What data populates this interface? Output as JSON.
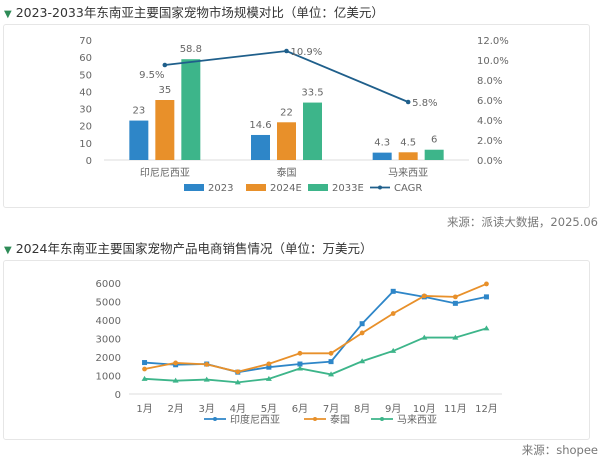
{
  "chart_data": [
    {
      "type": "bar",
      "title": "2023-2033年东南亚主要国家宠物市场规模对比（单位：亿美元）",
      "source": "来源：派读大数据，2025.06",
      "categories": [
        "印尼尼西亚",
        "泰国",
        "马来西亚"
      ],
      "series": [
        {
          "name": "2023",
          "color": "#2e86c8",
          "values": [
            23,
            14.6,
            4.3
          ],
          "labels": [
            "23",
            "14.6",
            "4.3"
          ]
        },
        {
          "name": "2024E",
          "color": "#e8902a",
          "values": [
            35,
            22,
            4.5
          ],
          "labels": [
            "35",
            "22",
            "4.5"
          ]
        },
        {
          "name": "2033E",
          "color": "#3db58a",
          "values": [
            58.8,
            33.5,
            6
          ],
          "labels": [
            "58.8",
            "33.5",
            "6"
          ]
        }
      ],
      "line": {
        "name": "CAGR",
        "color": "#1f5f8b",
        "values": [
          9.5,
          10.9,
          5.8
        ],
        "labels": [
          "9.5%",
          "10.9%",
          "5.8%"
        ]
      },
      "ylim": [
        0,
        70
      ],
      "yticks": [
        "0",
        "10",
        "20",
        "30",
        "40",
        "50",
        "60",
        "70"
      ],
      "y2lim": [
        0,
        12
      ],
      "y2ticks": [
        "0.0%",
        "2.0%",
        "4.0%",
        "6.0%",
        "8.0%",
        "10.0%",
        "12.0%"
      ],
      "legend": "bottom"
    },
    {
      "type": "line",
      "title": "2024年东南亚主要国家宠物产品电商销售情况（单位：万美元）",
      "source": "来源：shopee",
      "categories": [
        "1月",
        "2月",
        "3月",
        "4月",
        "5月",
        "6月",
        "7月",
        "8月",
        "9月",
        "10月",
        "11月",
        "12月"
      ],
      "series": [
        {
          "name": "印度尼西亚",
          "color": "#2e86c8",
          "marker": "square",
          "values": [
            1700,
            1580,
            1620,
            1180,
            1450,
            1620,
            1750,
            3800,
            5550,
            5250,
            4900,
            5250
          ]
        },
        {
          "name": "泰国",
          "color": "#e8902a",
          "marker": "circle",
          "values": [
            1350,
            1680,
            1600,
            1200,
            1630,
            2200,
            2200,
            3300,
            4350,
            5300,
            5250,
            5950
          ]
        },
        {
          "name": "马来西亚",
          "color": "#3db58a",
          "marker": "triangle",
          "values": [
            820,
            720,
            780,
            630,
            820,
            1380,
            1060,
            1770,
            2330,
            3050,
            3050,
            3550
          ]
        }
      ],
      "ylim": [
        0,
        6000
      ],
      "yticks": [
        "0",
        "1000",
        "2000",
        "3000",
        "4000",
        "5000",
        "6000"
      ],
      "legend": "bottom"
    }
  ]
}
